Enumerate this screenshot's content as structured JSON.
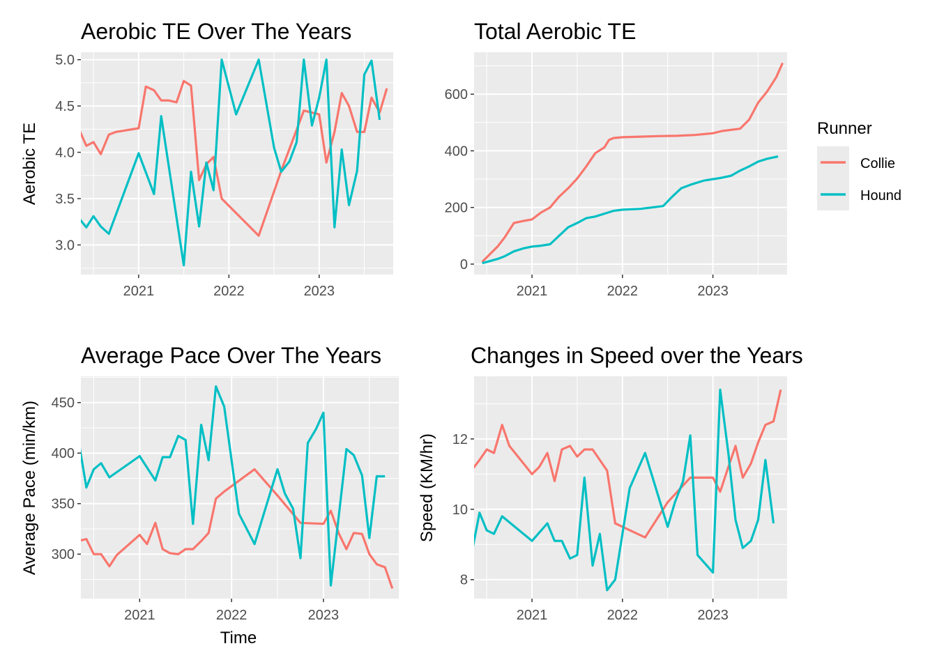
{
  "colors": {
    "Collie": "#F8766D",
    "Hound": "#00BFC4"
  },
  "legend": {
    "title": "Runner",
    "placement": "right",
    "entries": [
      {
        "name": "Collie",
        "color": "#F8766D"
      },
      {
        "name": "Hound",
        "color": "#00BFC4"
      }
    ]
  },
  "chart_data": [
    {
      "id": "aerobic",
      "type": "line",
      "title": "Aerobic TE Over The Years",
      "xlabel": "",
      "ylabel": "Aerobic TE",
      "xlim": [
        2020.36,
        2023.82
      ],
      "ylim": [
        2.68,
        5.08
      ],
      "xticks": [
        {
          "v": 2021,
          "label": "2021"
        },
        {
          "v": 2022,
          "label": "2022"
        },
        {
          "v": 2023,
          "label": "2023"
        }
      ],
      "yticks": [
        {
          "v": 3.0,
          "label": "3.0"
        },
        {
          "v": 3.5,
          "label": "3.5"
        },
        {
          "v": 4.0,
          "label": "4.0"
        },
        {
          "v": 4.5,
          "label": "4.5"
        },
        {
          "v": 5.0,
          "label": "5.0"
        }
      ],
      "grid": true,
      "series": [
        {
          "name": "Collie",
          "x": [
            2020.25,
            2020.33,
            2020.42,
            2020.5,
            2020.58,
            2020.67,
            2020.75,
            2021.0,
            2021.08,
            2021.17,
            2021.25,
            2021.33,
            2021.42,
            2021.5,
            2021.58,
            2021.67,
            2021.75,
            2021.83,
            2021.92,
            2022.33,
            2022.58,
            2022.83,
            2023.0,
            2023.08,
            2023.17,
            2023.25,
            2023.33,
            2023.42,
            2023.5,
            2023.58,
            2023.67,
            2023.75
          ],
          "y": [
            4.08,
            4.27,
            4.07,
            4.11,
            3.98,
            4.19,
            4.22,
            4.26,
            4.71,
            4.67,
            4.56,
            4.56,
            4.54,
            4.77,
            4.72,
            3.7,
            3.87,
            3.95,
            3.5,
            3.1,
            3.8,
            4.45,
            4.41,
            3.89,
            4.22,
            4.64,
            4.5,
            4.22,
            4.22,
            4.59,
            4.43,
            4.69
          ]
        },
        {
          "name": "Hound",
          "x": [
            2020.25,
            2020.33,
            2020.42,
            2020.5,
            2020.58,
            2020.67,
            2021.0,
            2021.17,
            2021.25,
            2021.5,
            2021.58,
            2021.67,
            2021.75,
            2021.83,
            2021.92,
            2022.08,
            2022.33,
            2022.5,
            2022.58,
            2022.67,
            2022.75,
            2022.83,
            2022.92,
            2023.0,
            2023.08,
            2023.17,
            2023.25,
            2023.33,
            2023.42,
            2023.5,
            2023.58,
            2023.67
          ],
          "y": [
            3.44,
            3.3,
            3.19,
            3.31,
            3.2,
            3.12,
            3.99,
            3.55,
            4.39,
            2.78,
            3.79,
            3.2,
            3.89,
            3.59,
            5.0,
            4.41,
            5.0,
            4.05,
            3.79,
            3.9,
            4.11,
            5.0,
            4.29,
            4.59,
            5.0,
            3.19,
            4.03,
            3.43,
            3.8,
            4.84,
            4.99,
            4.35
          ]
        }
      ]
    },
    {
      "id": "total",
      "type": "line",
      "title": "Total Aerobic TE",
      "xlabel": "",
      "ylabel": "",
      "xlim": [
        2020.36,
        2023.82
      ],
      "ylim": [
        -37,
        748
      ],
      "xticks": [
        {
          "v": 2021,
          "label": "2021"
        },
        {
          "v": 2022,
          "label": "2022"
        },
        {
          "v": 2023,
          "label": "2023"
        }
      ],
      "yticks": [
        {
          "v": 0,
          "label": "0"
        },
        {
          "v": 200,
          "label": "200"
        },
        {
          "v": 400,
          "label": "400"
        },
        {
          "v": 600,
          "label": "600"
        }
      ],
      "grid": true,
      "series": [
        {
          "name": "Collie",
          "x": [
            2020.45,
            2020.55,
            2020.62,
            2020.7,
            2020.8,
            2020.9,
            2021.0,
            2021.1,
            2021.2,
            2021.3,
            2021.4,
            2021.5,
            2021.6,
            2021.7,
            2021.8,
            2021.85,
            2021.9,
            2022.0,
            2022.2,
            2022.4,
            2022.6,
            2022.8,
            2023.0,
            2023.1,
            2023.3,
            2023.4,
            2023.5,
            2023.6,
            2023.7,
            2023.77
          ],
          "y": [
            8,
            40,
            62,
            95,
            145,
            152,
            158,
            182,
            200,
            238,
            268,
            302,
            345,
            392,
            412,
            438,
            445,
            448,
            450,
            452,
            453,
            456,
            462,
            470,
            478,
            510,
            570,
            610,
            660,
            710
          ]
        },
        {
          "name": "Hound",
          "x": [
            2020.45,
            2020.55,
            2020.62,
            2020.7,
            2020.8,
            2020.9,
            2021.0,
            2021.1,
            2021.2,
            2021.3,
            2021.4,
            2021.5,
            2021.6,
            2021.7,
            2021.8,
            2021.9,
            2022.0,
            2022.2,
            2022.45,
            2022.55,
            2022.65,
            2022.75,
            2022.9,
            2023.0,
            2023.1,
            2023.2,
            2023.3,
            2023.4,
            2023.5,
            2023.6,
            2023.72
          ],
          "y": [
            3,
            12,
            18,
            28,
            45,
            55,
            62,
            65,
            70,
            100,
            130,
            145,
            162,
            168,
            178,
            188,
            192,
            195,
            205,
            238,
            268,
            280,
            295,
            300,
            305,
            312,
            330,
            345,
            362,
            372,
            380
          ]
        }
      ]
    },
    {
      "id": "pace",
      "type": "line",
      "title": "Average Pace Over The Years",
      "xlabel": "Time",
      "ylabel": "Average Pace (min/km)",
      "xlim": [
        2020.36,
        2023.82
      ],
      "ylim": [
        256,
        476
      ],
      "xticks": [
        {
          "v": 2021,
          "label": "2021"
        },
        {
          "v": 2022,
          "label": "2022"
        },
        {
          "v": 2023,
          "label": "2023"
        }
      ],
      "yticks": [
        {
          "v": 300,
          "label": "300"
        },
        {
          "v": 350,
          "label": "350"
        },
        {
          "v": 400,
          "label": "400"
        },
        {
          "v": 450,
          "label": "450"
        }
      ],
      "grid": true,
      "series": [
        {
          "name": "Collie",
          "x": [
            2020.25,
            2020.33,
            2020.42,
            2020.5,
            2020.58,
            2020.67,
            2020.75,
            2021.0,
            2021.08,
            2021.17,
            2021.25,
            2021.33,
            2021.42,
            2021.5,
            2021.58,
            2021.67,
            2021.75,
            2021.83,
            2021.92,
            2022.25,
            2022.5,
            2022.75,
            2023.0,
            2023.08,
            2023.17,
            2023.25,
            2023.33,
            2023.42,
            2023.5,
            2023.58,
            2023.67,
            2023.75
          ],
          "y": [
            332,
            313,
            315,
            300,
            300,
            288,
            299,
            319,
            310,
            331,
            305,
            301,
            300,
            305,
            305,
            313,
            321,
            355,
            362,
            384,
            358,
            331,
            330,
            343,
            320,
            305,
            321,
            320,
            300,
            290,
            287,
            266
          ]
        },
        {
          "name": "Hound",
          "x": [
            2020.25,
            2020.33,
            2020.42,
            2020.5,
            2020.58,
            2020.67,
            2021.0,
            2021.17,
            2021.25,
            2021.33,
            2021.42,
            2021.5,
            2021.58,
            2021.67,
            2021.75,
            2021.83,
            2021.92,
            2022.08,
            2022.25,
            2022.5,
            2022.58,
            2022.67,
            2022.75,
            2022.83,
            2022.92,
            2023.0,
            2023.08,
            2023.17,
            2023.25,
            2023.33,
            2023.42,
            2023.5,
            2023.58,
            2023.67
          ],
          "y": [
            408,
            415,
            366,
            384,
            390,
            376,
            397,
            373,
            396,
            396,
            417,
            413,
            330,
            428,
            393,
            466,
            446,
            340,
            310,
            384,
            360,
            345,
            296,
            410,
            424,
            440,
            269,
            340,
            404,
            398,
            378,
            316,
            377,
            377
          ]
        }
      ]
    },
    {
      "id": "speed",
      "type": "line",
      "title": "Changes in Speed over the Years",
      "xlabel": "",
      "ylabel": "Speed (KM/hr)",
      "xlim": [
        2020.36,
        2023.82
      ],
      "ylim": [
        7.46,
        13.78
      ],
      "xticks": [
        {
          "v": 2021,
          "label": "2021"
        },
        {
          "v": 2022,
          "label": "2022"
        },
        {
          "v": 2023,
          "label": "2023"
        }
      ],
      "yticks": [
        {
          "v": 8,
          "label": "8"
        },
        {
          "v": 10,
          "label": "10"
        },
        {
          "v": 12,
          "label": "12"
        }
      ],
      "grid": true,
      "series": [
        {
          "name": "Collie",
          "x": [
            2020.25,
            2020.33,
            2020.42,
            2020.5,
            2020.58,
            2020.67,
            2020.75,
            2021.0,
            2021.08,
            2021.17,
            2021.25,
            2021.33,
            2021.42,
            2021.5,
            2021.58,
            2021.67,
            2021.75,
            2021.83,
            2021.92,
            2022.25,
            2022.5,
            2022.75,
            2023.0,
            2023.08,
            2023.17,
            2023.25,
            2023.33,
            2023.42,
            2023.5,
            2023.58,
            2023.67,
            2023.75
          ],
          "y": [
            10.8,
            11.1,
            11.4,
            11.7,
            11.6,
            12.4,
            11.8,
            11.0,
            11.2,
            11.6,
            10.8,
            11.7,
            11.8,
            11.5,
            11.7,
            11.7,
            11.4,
            11.1,
            9.6,
            9.2,
            10.2,
            10.9,
            10.9,
            10.5,
            11.2,
            11.8,
            10.9,
            11.3,
            11.9,
            12.4,
            12.5,
            13.4
          ]
        },
        {
          "name": "Hound",
          "x": [
            2020.25,
            2020.33,
            2020.42,
            2020.5,
            2020.58,
            2020.67,
            2021.0,
            2021.17,
            2021.25,
            2021.33,
            2021.42,
            2021.5,
            2021.58,
            2021.67,
            2021.75,
            2021.83,
            2021.92,
            2022.08,
            2022.25,
            2022.5,
            2022.58,
            2022.67,
            2022.75,
            2022.83,
            2023.0,
            2023.08,
            2023.17,
            2023.25,
            2023.33,
            2023.42,
            2023.5,
            2023.58,
            2023.67
          ],
          "y": [
            8.8,
            8.7,
            9.9,
            9.4,
            9.3,
            9.8,
            9.1,
            9.6,
            9.1,
            9.1,
            8.6,
            8.7,
            10.9,
            8.4,
            9.3,
            7.7,
            8.0,
            10.6,
            11.6,
            9.5,
            10.2,
            10.8,
            12.1,
            8.7,
            8.2,
            13.4,
            11.6,
            9.7,
            8.9,
            9.1,
            9.7,
            11.4,
            9.6
          ]
        }
      ]
    }
  ]
}
